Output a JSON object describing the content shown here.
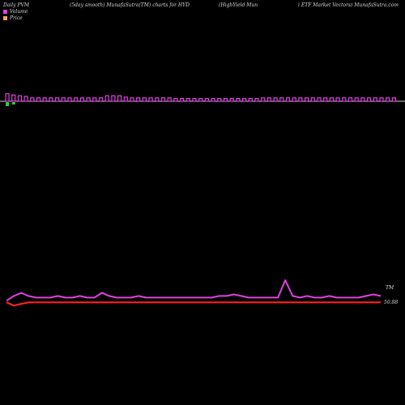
{
  "header": {
    "col1": "Daily PVM",
    "col2": "(5day smooth) MunafaSutra(TM) charts for HYD",
    "col3": "(HighYield Mun",
    "col4": "i  ETF Market Vectors) MunafaSutra.com"
  },
  "legend": {
    "volume_label": "Volume",
    "price_label": "Price",
    "volume_color": "#e040e0",
    "price_color": "#f4a460"
  },
  "chart_data": [
    {
      "type": "bar",
      "title": "Volume",
      "series": [
        {
          "values": [
            11,
            9,
            8,
            7,
            5,
            5,
            5,
            5,
            5,
            5,
            5,
            5,
            5,
            5,
            5,
            5,
            8,
            8,
            8,
            6,
            5,
            5,
            5,
            5,
            5,
            5,
            5,
            4,
            4,
            4,
            4,
            4,
            4,
            4,
            4,
            4,
            4,
            4,
            4,
            4,
            4,
            5,
            5,
            5,
            5,
            5,
            5,
            5,
            5,
            5,
            5,
            5,
            5,
            5,
            5,
            5,
            5,
            5,
            5,
            5,
            5,
            5,
            5
          ]
        }
      ],
      "bar_colors": [
        "#e040e0"
      ]
    },
    {
      "type": "line",
      "series": [
        {
          "name": "Price",
          "color": "#e040e0",
          "values": [
            52,
            55,
            57,
            55,
            54,
            54,
            54,
            55,
            54,
            54,
            55,
            54,
            54,
            57,
            55,
            54,
            54,
            54,
            55,
            54,
            54,
            54,
            54,
            54,
            54,
            54,
            54,
            54,
            54,
            55,
            55,
            56,
            55,
            54,
            54,
            54,
            54,
            54,
            65,
            55,
            54,
            55,
            54,
            54,
            55,
            54,
            54,
            54,
            54,
            55,
            56,
            55
          ]
        },
        {
          "name": "",
          "color": "#ff2020",
          "values": [
            51,
            49,
            50,
            51,
            51,
            51,
            51,
            51,
            51,
            51,
            51,
            51,
            51,
            51,
            51,
            51,
            51,
            51,
            51,
            51,
            51,
            51,
            51,
            51,
            51,
            51,
            51,
            51,
            51,
            51,
            51,
            51,
            51,
            51,
            51,
            51,
            51,
            51,
            51,
            51,
            51,
            51,
            51,
            51,
            51,
            51,
            51,
            51,
            51,
            51,
            51,
            51
          ]
        }
      ],
      "annotations": [
        "TM",
        "50.88"
      ]
    }
  ]
}
